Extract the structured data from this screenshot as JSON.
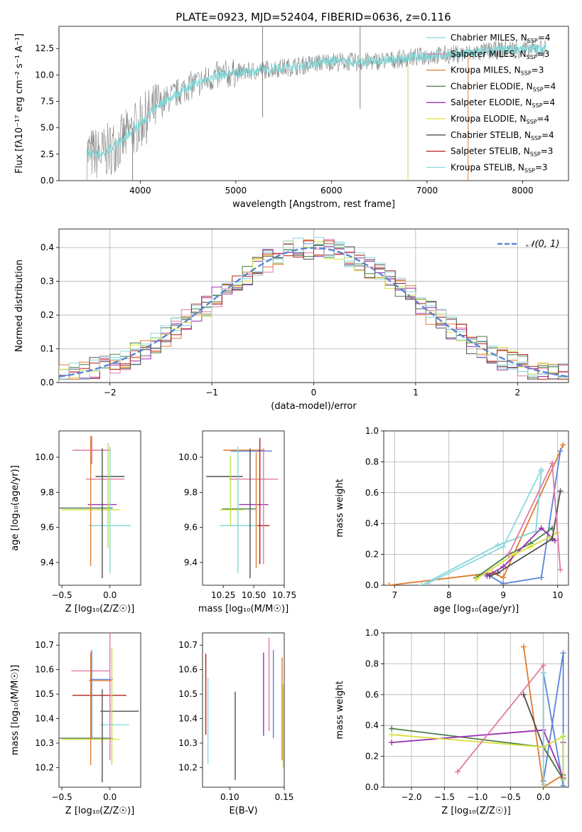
{
  "title": "PLATE=0923, MJD=52404, FIBERID=0636, z=0.116",
  "colors": {
    "gray": "#808080",
    "cyan": "#7fd6d6",
    "blue": "#5b84d6",
    "orange": "#e07b2c",
    "green": "#4a7f4a",
    "purple": "#9b30b0",
    "yellow": "#d9e03a",
    "lime": "#b6e24a",
    "dark": "#505050",
    "red": "#b22222",
    "pink": "#e07aa8",
    "lightblue": "#8fd8e0"
  },
  "chart_data": [
    {
      "id": "spectrum",
      "type": "line",
      "xlabel": "wavelength [Angstrom, rest frame]",
      "ylabel": "Flux [fλ10⁻¹⁷ erg cm⁻² s⁻¹ A⁻¹]",
      "xlim": [
        3150,
        8480
      ],
      "ylim": [
        0,
        14.6
      ],
      "xticks": [
        4000,
        5000,
        6000,
        7000,
        8000
      ],
      "yticks": [
        0.0,
        2.5,
        5.0,
        7.5,
        10.0,
        12.5
      ],
      "ytick_labels": [
        "0.0",
        "2.5",
        "5.0",
        "7.5",
        "10.0",
        "12.5"
      ],
      "legend_position": "top-right",
      "legend": [
        {
          "label": "Chabrier MILES, N",
          "sub": "SSP",
          "tail": "=4",
          "color": "#7fd6d6"
        },
        {
          "label": "Salpeter MILES, N",
          "sub": "SSP",
          "tail": "=3",
          "color": "#e07aa8"
        },
        {
          "label": "Kroupa MILES, N",
          "sub": "SSP",
          "tail": "=3",
          "color": "#e07b2c"
        },
        {
          "label": "Chabrier ELODIE, N",
          "sub": "SSP",
          "tail": "=4",
          "color": "#4a7f4a"
        },
        {
          "label": "Salpeter ELODIE, N",
          "sub": "SSP",
          "tail": "=4",
          "color": "#9b30b0"
        },
        {
          "label": "Kroupa ELODIE, N",
          "sub": "SSP",
          "tail": "=4",
          "color": "#d9e03a"
        },
        {
          "label": "Chabrier STELIB, N",
          "sub": "SSP",
          "tail": "=4",
          "color": "#505050"
        },
        {
          "label": "Salpeter STELIB, N",
          "sub": "SSP",
          "tail": "=3",
          "color": "#b22222"
        },
        {
          "label": "Kroupa STELIB, N",
          "sub": "SSP",
          "tail": "=3",
          "color": "#8fd8e0"
        }
      ],
      "continuum_x": [
        3450,
        3600,
        3800,
        4000,
        4200,
        4500,
        4800,
        5000,
        5300,
        5600,
        6000,
        6300,
        6600,
        7000,
        7400,
        7800,
        8250
      ],
      "continuum_y": [
        2.6,
        2.5,
        3.7,
        5.4,
        7.2,
        8.9,
        9.9,
        10.2,
        10.5,
        10.8,
        11.3,
        11.2,
        11.4,
        11.8,
        12.0,
        12.4,
        12.5
      ],
      "spikes": [
        {
          "x": 6800,
          "y0": 0,
          "y1": 11.0,
          "color": "#b6e24a"
        },
        {
          "x": 7430,
          "y0": 0,
          "y1": 11.8,
          "color": "#e07b2c"
        },
        {
          "x": 5280,
          "y0": 6.0,
          "y1": 14.6,
          "color": "#808080"
        },
        {
          "x": 6300,
          "y0": 6.8,
          "y1": 14.6,
          "color": "#808080"
        },
        {
          "x": 3920,
          "y0": 0,
          "y1": 5.0,
          "color": "#808080"
        }
      ]
    },
    {
      "id": "residuals",
      "type": "histogram",
      "xlabel": "(data-model)/error",
      "ylabel": "Normed distribution",
      "xlim": [
        -2.5,
        2.5
      ],
      "ylim": [
        0,
        0.455
      ],
      "xticks": [
        -2,
        -1,
        0,
        1,
        2
      ],
      "xtick_labels": [
        "−2",
        "−1",
        "0",
        "1",
        "2"
      ],
      "yticks": [
        0.0,
        0.1,
        0.2,
        0.3,
        0.4
      ],
      "ytick_labels": [
        "0.0",
        "0.1",
        "0.2",
        "0.3",
        "0.4"
      ],
      "grid": true,
      "legend_label": "𝒩(0, 1)",
      "legend_position": "top-right",
      "n_series": 9
    },
    {
      "id": "age_Z",
      "type": "errorbar",
      "xlabel": "Z [log₁₀(Z/Z☉)]",
      "ylabel": "age  [log₁₀(age/yr)]",
      "xlim": [
        -0.53,
        0.32
      ],
      "ylim": [
        9.27,
        10.15
      ],
      "xticks": [
        -0.5,
        0.0
      ],
      "xtick_labels": [
        "−0.5",
        "0.0"
      ],
      "yticks": [
        9.4,
        9.6,
        9.8,
        10.0
      ],
      "ytick_labels": [
        "9.4",
        "9.6",
        "9.8",
        "10.0"
      ],
      "points": [
        {
          "x": -0.19,
          "xerr": 0.02,
          "y": 10.04,
          "yerr": 0.08,
          "color": "#e07b2c"
        },
        {
          "x": -0.2,
          "xerr": 0.0,
          "y": 10.04,
          "yerr": 0.08,
          "color": "#7fd6d6"
        },
        {
          "x": -0.19,
          "xerr": 0.2,
          "y": 10.04,
          "yerr": 0.08,
          "color": "#e07aa8"
        },
        {
          "x": -0.05,
          "xerr": 0.2,
          "y": 9.875,
          "yerr": 0.0,
          "color": "#e07aa8"
        },
        {
          "x": 0.0,
          "xerr": 0.15,
          "y": 9.89,
          "yerr": 0.0,
          "color": "#505050"
        },
        {
          "x": -0.08,
          "xerr": 0.15,
          "y": 9.73,
          "yerr": 0.0,
          "color": "#9b30b0"
        },
        {
          "x": -0.25,
          "xerr": 0.28,
          "y": 9.71,
          "yerr": 0.0,
          "color": "#4a7f4a"
        },
        {
          "x": -0.2,
          "xerr": 0.3,
          "y": 9.7,
          "yerr": 0.0,
          "color": "#d9e03a"
        },
        {
          "x": 0.0,
          "xerr": 0.22,
          "y": 9.61,
          "yerr": 0.0,
          "color": "#7fd6d6"
        },
        {
          "x": -0.2,
          "xerr": 0.0,
          "y": 9.75,
          "yerr": 0.37,
          "color": "#e07b2c"
        },
        {
          "x": -0.08,
          "xerr": 0.0,
          "y": 9.68,
          "yerr": 0.37,
          "color": "#505050"
        },
        {
          "x": 0.0,
          "xerr": 0.0,
          "y": 9.7,
          "yerr": 0.36,
          "color": "#7fd6d6"
        },
        {
          "x": -0.02,
          "xerr": 0.0,
          "y": 9.78,
          "yerr": 0.3,
          "color": "#b6e24a"
        }
      ]
    },
    {
      "id": "age_mass",
      "type": "errorbar",
      "xlabel": "mass [log₁₀(M/M☉)]",
      "xlim": [
        10.08,
        10.75
      ],
      "ylim": [
        9.27,
        10.15
      ],
      "xticks": [
        10.25,
        10.5,
        10.75
      ],
      "xtick_labels": [
        "10.25",
        "10.50",
        "10.75"
      ],
      "yticks": [
        9.4,
        9.6,
        9.8,
        10.0
      ],
      "ytick_labels": [
        "9.4",
        "9.6",
        "9.8",
        "10.0"
      ],
      "points": [
        {
          "x": 10.42,
          "xerr": 0.17,
          "y": 10.04,
          "yerr": 0.0,
          "color": "#e07b2c"
        },
        {
          "x": 10.48,
          "xerr": 0.17,
          "y": 10.035,
          "yerr": 0.0,
          "color": "#5b84d6"
        },
        {
          "x": 10.5,
          "xerr": 0.2,
          "y": 9.875,
          "yerr": 0.0,
          "color": "#e07aa8"
        },
        {
          "x": 10.26,
          "xerr": 0.15,
          "y": 9.89,
          "yerr": 0.0,
          "color": "#505050"
        },
        {
          "x": 10.5,
          "xerr": 0.12,
          "y": 9.73,
          "yerr": 0.0,
          "color": "#9b30b0"
        },
        {
          "x": 10.38,
          "xerr": 0.14,
          "y": 9.705,
          "yerr": 0.0,
          "color": "#4a7f4a"
        },
        {
          "x": 10.32,
          "xerr": 0.1,
          "y": 9.7,
          "yerr": 0.0,
          "color": "#d9e03a"
        },
        {
          "x": 10.42,
          "xerr": 0.2,
          "y": 9.61,
          "yerr": 0.0,
          "color": "#7fd6d6"
        },
        {
          "x": 10.58,
          "xerr": 0.05,
          "y": 9.61,
          "yerr": 0.0,
          "color": "#b22222"
        },
        {
          "x": 10.31,
          "xerr": 0.0,
          "y": 9.81,
          "yerr": 0.2,
          "color": "#b6e24a"
        },
        {
          "x": 10.47,
          "xerr": 0.0,
          "y": 9.68,
          "yerr": 0.37,
          "color": "#505050"
        },
        {
          "x": 10.37,
          "xerr": 0.0,
          "y": 9.7,
          "yerr": 0.36,
          "color": "#7fd6d6"
        },
        {
          "x": 10.52,
          "xerr": 0.0,
          "y": 9.7,
          "yerr": 0.33,
          "color": "#e07b2c"
        },
        {
          "x": 10.58,
          "xerr": 0.0,
          "y": 9.72,
          "yerr": 0.33,
          "color": "#e07aa8"
        },
        {
          "x": 10.55,
          "xerr": 0.0,
          "y": 9.75,
          "yerr": 0.36,
          "color": "#b22222"
        }
      ]
    },
    {
      "id": "weight_age",
      "type": "line",
      "xlabel": "age  [log₁₀(age/yr)]",
      "ylabel": "mass weight",
      "xlim": [
        6.8,
        10.2
      ],
      "ylim": [
        0,
        1.0
      ],
      "xticks": [
        7,
        8,
        9,
        10
      ],
      "xtick_labels": [
        "7",
        "8",
        "9",
        "10"
      ],
      "yticks": [
        0.0,
        0.2,
        0.4,
        0.6,
        0.8,
        1.0
      ],
      "ytick_labels": [
        "0.0",
        "0.2",
        "0.4",
        "0.6",
        "0.8",
        "1.0"
      ],
      "grid": true,
      "series": [
        {
          "color": "#e07b2c",
          "x": [
            6.9,
            8.8,
            9.0,
            10.1
          ],
          "y": [
            0.0,
            0.08,
            0.05,
            0.91
          ]
        },
        {
          "color": "#5b84d6",
          "x": [
            8.7,
            9.0,
            9.7,
            10.05
          ],
          "y": [
            0.07,
            0.01,
            0.05,
            0.87
          ]
        },
        {
          "color": "#7fd6d6",
          "x": [
            7.5,
            8.9,
            9.6,
            9.7
          ],
          "y": [
            0.0,
            0.26,
            0.35,
            0.74
          ]
        },
        {
          "color": "#4a7f4a",
          "x": [
            8.5,
            9.1,
            9.5,
            9.9
          ],
          "y": [
            0.05,
            0.2,
            0.27,
            0.37
          ]
        },
        {
          "color": "#9b30b0",
          "x": [
            8.7,
            9.0,
            9.7,
            9.95
          ],
          "y": [
            0.06,
            0.12,
            0.37,
            0.29
          ]
        },
        {
          "color": "#d9e03a",
          "x": [
            8.5,
            9.2,
            9.5,
            10.0
          ],
          "y": [
            0.04,
            0.2,
            0.25,
            0.34
          ]
        },
        {
          "color": "#505050",
          "x": [
            8.75,
            8.9,
            9.9,
            10.05
          ],
          "y": [
            0.06,
            0.08,
            0.3,
            0.61
          ]
        },
        {
          "color": "#e07aa8",
          "x": [
            9.1,
            9.9,
            10.05
          ],
          "y": [
            0.2,
            0.79,
            0.1
          ]
        },
        {
          "color": "#8fd8e0",
          "x": [
            7.6,
            9.0,
            9.7
          ],
          "y": [
            0.01,
            0.25,
            0.75
          ]
        }
      ]
    },
    {
      "id": "mass_Z",
      "type": "errorbar",
      "xlabel": "Z [log₁₀(Z/Z☉)]",
      "ylabel": "mass [log₁₀(M/M☉)]",
      "xlim": [
        -0.53,
        0.32
      ],
      "ylim": [
        10.12,
        10.75
      ],
      "xticks": [
        -0.5,
        0.0
      ],
      "xtick_labels": [
        "−0.5",
        "0.0"
      ],
      "yticks": [
        10.2,
        10.3,
        10.4,
        10.5,
        10.6,
        10.7
      ],
      "ytick_labels": [
        "10.2",
        "10.3",
        "10.4",
        "10.5",
        "10.6",
        "10.7"
      ],
      "points": [
        {
          "x": -0.2,
          "xerr": 0.2,
          "y": 10.595,
          "yerr": 0.0,
          "color": "#e07aa8"
        },
        {
          "x": -0.09,
          "xerr": 0.12,
          "y": 10.56,
          "yerr": 0.0,
          "color": "#5b84d6"
        },
        {
          "x": -0.1,
          "xerr": 0.12,
          "y": 10.555,
          "yerr": 0.0,
          "color": "#e07b2c"
        },
        {
          "x": -0.11,
          "xerr": 0.28,
          "y": 10.495,
          "yerr": 0.0,
          "color": "#b22222"
        },
        {
          "x": 0.1,
          "xerr": 0.2,
          "y": 10.43,
          "yerr": 0.0,
          "color": "#505050"
        },
        {
          "x": 0.05,
          "xerr": 0.15,
          "y": 10.375,
          "yerr": 0.0,
          "color": "#8fd8e0"
        },
        {
          "x": -0.25,
          "xerr": 0.28,
          "y": 10.32,
          "yerr": 0.0,
          "color": "#4a7f4a"
        },
        {
          "x": -0.2,
          "xerr": 0.3,
          "y": 10.315,
          "yerr": 0.0,
          "color": "#d9e03a"
        },
        {
          "x": -0.2,
          "xerr": 0.0,
          "y": 10.44,
          "yerr": 0.23,
          "color": "#e07b2c"
        },
        {
          "x": -0.19,
          "xerr": 0.0,
          "y": 10.5,
          "yerr": 0.18,
          "color": "#5b84d6"
        },
        {
          "x": -0.08,
          "xerr": 0.0,
          "y": 10.33,
          "yerr": 0.19,
          "color": "#505050"
        },
        {
          "x": 0.0,
          "xerr": 0.0,
          "y": 10.49,
          "yerr": 0.26,
          "color": "#e07aa8"
        },
        {
          "x": 0.02,
          "xerr": 0.0,
          "y": 10.45,
          "yerr": 0.24,
          "color": "#b6e24a"
        }
      ]
    },
    {
      "id": "mass_EBV",
      "type": "errorbar",
      "xlabel": "E(B-V)",
      "xlim": [
        0.075,
        0.15
      ],
      "ylim": [
        10.12,
        10.75
      ],
      "xticks": [
        0.1,
        0.15
      ],
      "xtick_labels": [
        "0.10",
        "0.15"
      ],
      "yticks": [
        10.2,
        10.3,
        10.4,
        10.5,
        10.6,
        10.7
      ],
      "ytick_labels": [
        "10.2",
        "10.3",
        "10.4",
        "10.5",
        "10.6",
        "10.7"
      ],
      "points": [
        {
          "x": 0.078,
          "xerr": 0.0,
          "y": 10.5,
          "yerr": 0.165,
          "color": "#b22222"
        },
        {
          "x": 0.08,
          "xerr": 0.0,
          "y": 10.39,
          "yerr": 0.175,
          "color": "#8fd8e0"
        },
        {
          "x": 0.105,
          "xerr": 0.0,
          "y": 10.33,
          "yerr": 0.18,
          "color": "#505050"
        },
        {
          "x": 0.131,
          "xerr": 0.0,
          "y": 10.5,
          "yerr": 0.17,
          "color": "#9b30b0"
        },
        {
          "x": 0.136,
          "xerr": 0.0,
          "y": 10.54,
          "yerr": 0.19,
          "color": "#e07aa8"
        },
        {
          "x": 0.14,
          "xerr": 0.0,
          "y": 10.5,
          "yerr": 0.18,
          "color": "#5b84d6"
        },
        {
          "x": 0.148,
          "xerr": 0.0,
          "y": 10.44,
          "yerr": 0.21,
          "color": "#e07b2c"
        },
        {
          "x": 0.149,
          "xerr": 0.0,
          "y": 10.37,
          "yerr": 0.17,
          "color": "#b6e24a"
        }
      ]
    },
    {
      "id": "weight_Z",
      "type": "line",
      "xlabel": "Z [log₁₀(Z/Z☉)]",
      "ylabel": "mass weight",
      "xlim": [
        -2.42,
        0.38
      ],
      "ylim": [
        0,
        1.0
      ],
      "xticks": [
        -2.0,
        -1.5,
        -1.0,
        -0.5,
        0.0
      ],
      "xtick_labels": [
        "−2.0",
        "−1.5",
        "−1.0",
        "−0.5",
        "0.0"
      ],
      "yticks": [
        0.0,
        0.2,
        0.4,
        0.6,
        0.8,
        1.0
      ],
      "ytick_labels": [
        "0.0",
        "0.2",
        "0.4",
        "0.6",
        "0.8",
        "1.0"
      ],
      "grid": true,
      "series": [
        {
          "color": "#e07b2c",
          "x": [
            -0.3,
            0.0,
            0.3
          ],
          "y": [
            0.91,
            0.0,
            0.08
          ]
        },
        {
          "color": "#505050",
          "x": [
            -0.3,
            0.0,
            0.3
          ],
          "y": [
            0.6,
            0.26,
            0.05
          ]
        },
        {
          "color": "#5b84d6",
          "x": [
            0.0,
            0.3,
            0.3,
            0.0
          ],
          "y": [
            0.04,
            0.87,
            0.01,
            0.74
          ]
        },
        {
          "color": "#4a7f4a",
          "x": [
            -2.3,
            0.0,
            0.3,
            0.3
          ],
          "y": [
            0.38,
            0.26,
            0.05,
            0.08
          ]
        },
        {
          "color": "#9b30b0",
          "x": [
            -2.3,
            0.0,
            0.3,
            0.3
          ],
          "y": [
            0.29,
            0.37,
            0.06,
            0.29
          ]
        },
        {
          "color": "#d9e03a",
          "x": [
            -2.3,
            0.0,
            0.3
          ],
          "y": [
            0.34,
            0.26,
            0.33
          ]
        },
        {
          "color": "#e07aa8",
          "x": [
            -1.3,
            0.0,
            0.0
          ],
          "y": [
            0.1,
            0.79,
            0.2
          ]
        },
        {
          "color": "#7fd6d6",
          "x": [
            0.0,
            0.0
          ],
          "y": [
            0.74,
            0.02
          ]
        },
        {
          "color": "#b6e24a",
          "x": [
            0.3,
            0.3
          ],
          "y": [
            0.33,
            0.05
          ]
        }
      ]
    }
  ]
}
